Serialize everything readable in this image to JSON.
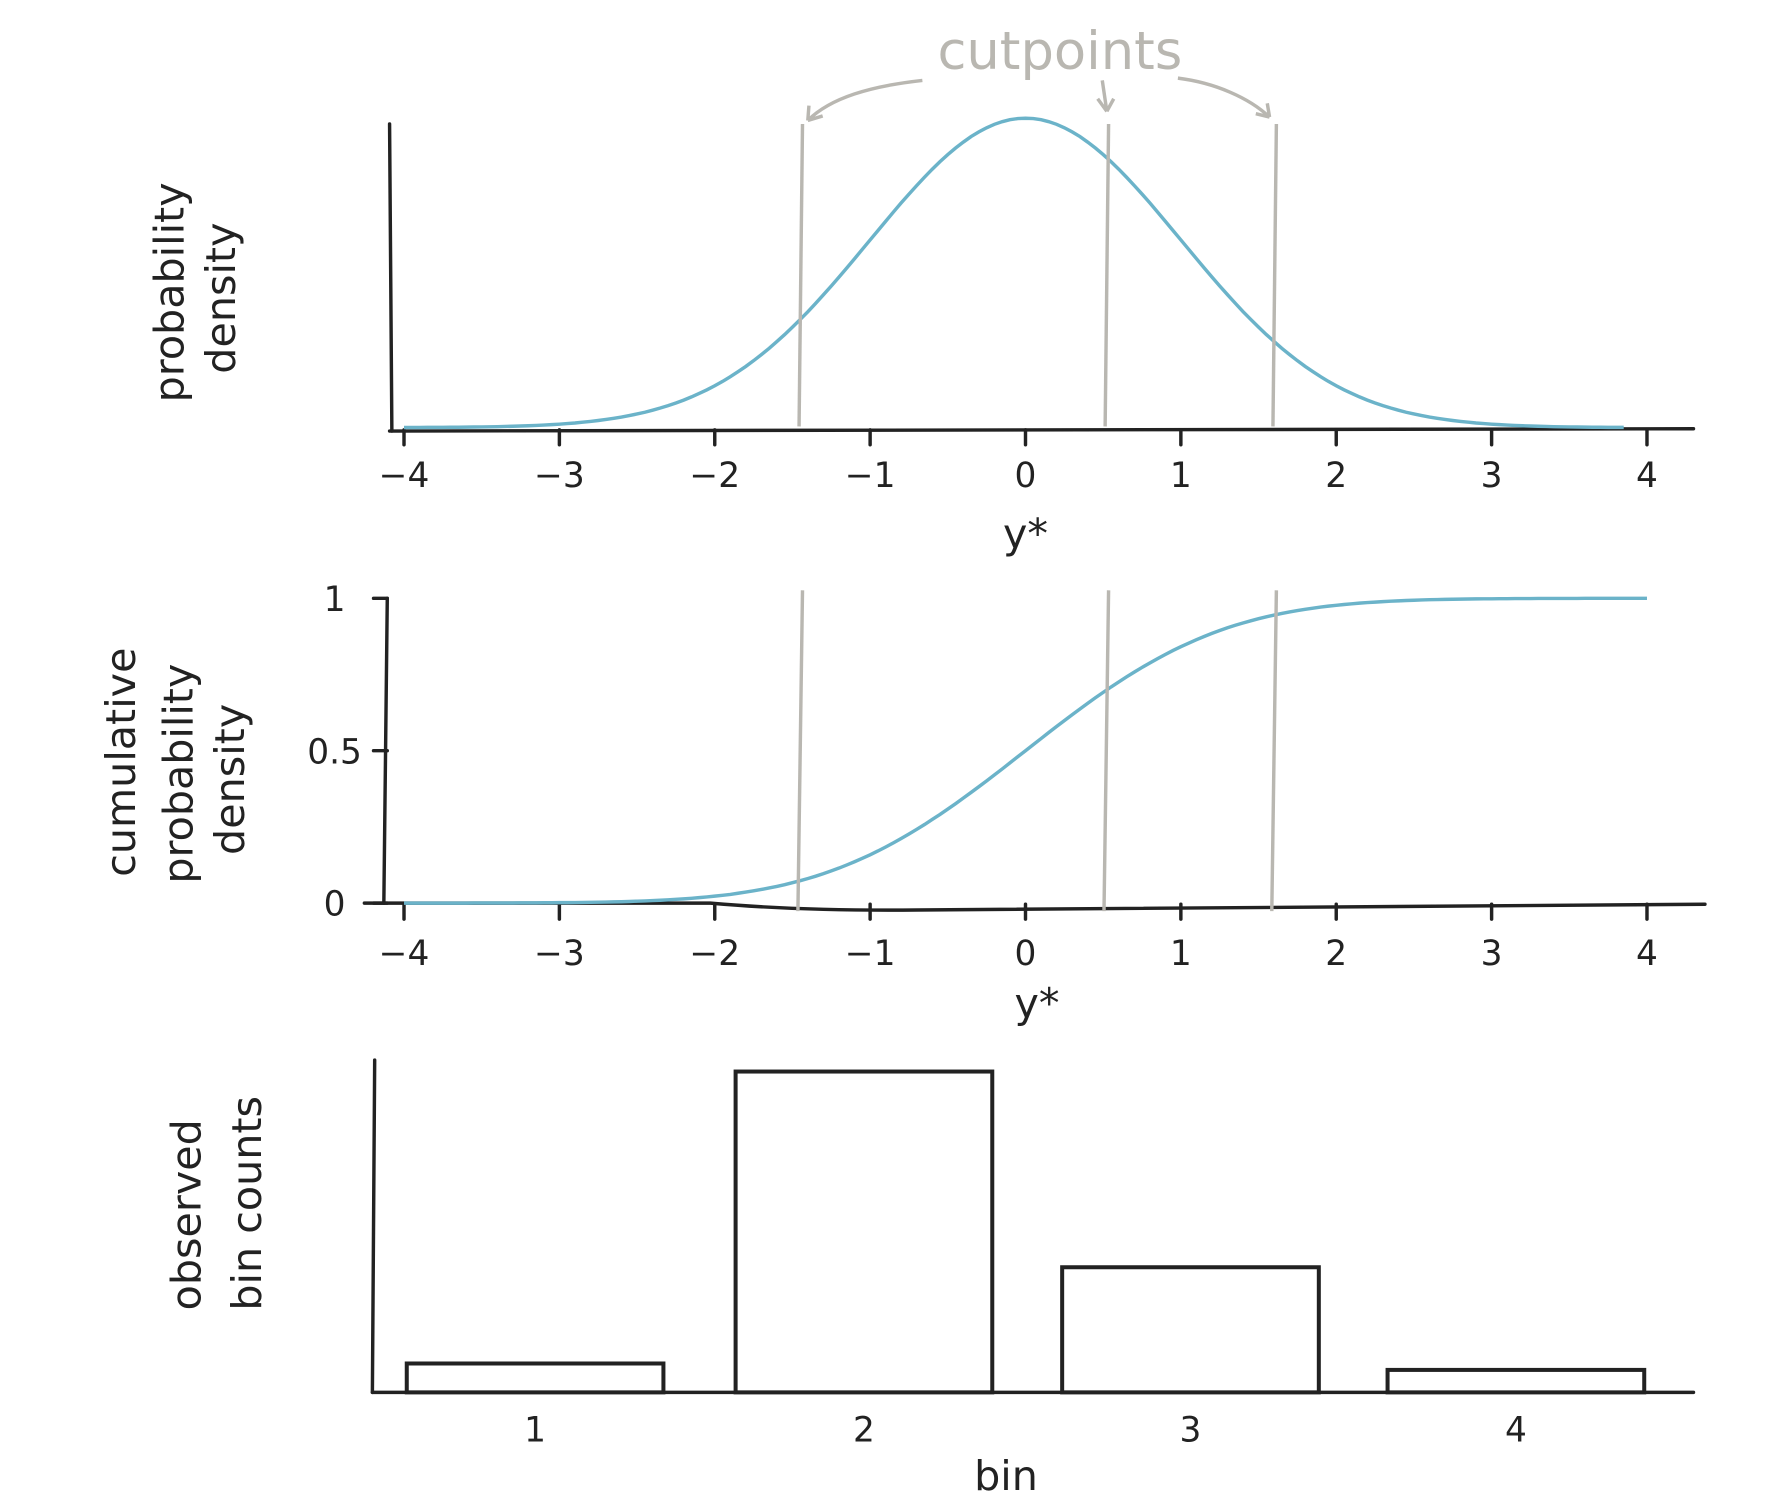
{
  "annotation": "cutpoints",
  "colors": {
    "curve": "#6bb3c9",
    "cutpoints": "#b9b7b1",
    "ink": "#222222"
  },
  "chart_data": [
    {
      "type": "line",
      "xlabel": "y*",
      "ylabel": "probability density",
      "xlim": [
        -4,
        4
      ],
      "xticks": [
        "-4",
        "-3",
        "-2",
        "-1",
        "0",
        "1",
        "2",
        "3",
        "4"
      ],
      "series": [
        {
          "function": "standard normal pdf",
          "x_range": [
            -4,
            3.85
          ]
        }
      ],
      "cutpoints": [
        -1.45,
        0.52,
        1.6
      ]
    },
    {
      "type": "line",
      "xlabel": "y*",
      "ylabel": "cumulative probability density",
      "xlim": [
        -4,
        4
      ],
      "ylim": [
        0,
        1
      ],
      "xticks": [
        "-4",
        "-3",
        "-2",
        "-1",
        "0",
        "1",
        "2",
        "3",
        "4"
      ],
      "yticks": [
        "0",
        "0.5",
        "1"
      ],
      "series": [
        {
          "function": "standard normal cdf",
          "x_range": [
            -4,
            4
          ]
        }
      ],
      "cutpoints": [
        -1.45,
        0.52,
        1.6
      ]
    },
    {
      "type": "bar",
      "xlabel": "bin",
      "ylabel": "observed bin counts",
      "categories": [
        "1",
        "2",
        "3",
        "4"
      ],
      "values": [
        0.09,
        1.0,
        0.39,
        0.07
      ]
    }
  ]
}
